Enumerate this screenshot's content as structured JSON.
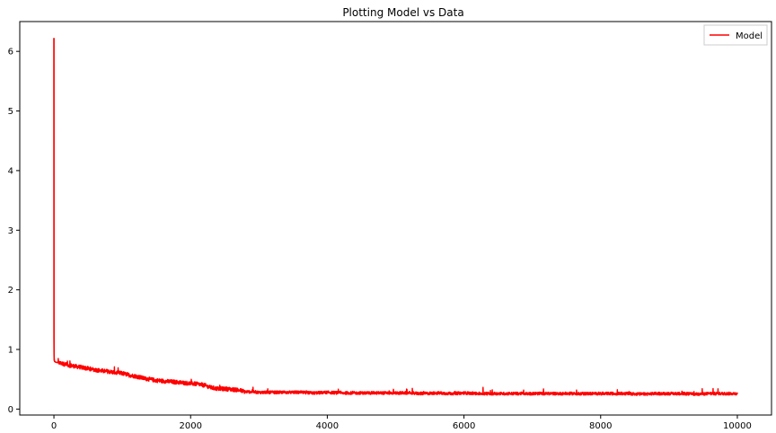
{
  "chart_data": {
    "type": "line",
    "title": "Plotting Model vs Data",
    "xlabel": "",
    "ylabel": "",
    "xlim": [
      -500,
      10500
    ],
    "ylim": [
      -0.1,
      6.5
    ],
    "x_ticks": [
      0,
      2000,
      4000,
      6000,
      8000,
      10000
    ],
    "x_tick_labels": [
      "0",
      "2000",
      "4000",
      "6000",
      "8000",
      "10000"
    ],
    "y_ticks": [
      0,
      1,
      2,
      3,
      4,
      5,
      6
    ],
    "y_tick_labels": [
      "0",
      "1",
      "2",
      "3",
      "4",
      "5",
      "6"
    ],
    "grid": false,
    "legend_position": "top-right",
    "legend": [
      "Model"
    ],
    "series": [
      {
        "name": "Model",
        "color": "#ff0000",
        "x": [
          0,
          1,
          2,
          5,
          10,
          20,
          50,
          100,
          200,
          300,
          400,
          500,
          600,
          700,
          800,
          900,
          1000,
          1100,
          1200,
          1300,
          1400,
          1500,
          1600,
          1700,
          1800,
          1900,
          2000,
          2100,
          2200,
          2300,
          2400,
          2500,
          2600,
          2700,
          2800,
          2900,
          3000,
          3200,
          3400,
          3600,
          3800,
          4000,
          4200,
          4400,
          4600,
          4800,
          5000,
          5200,
          5400,
          5600,
          5800,
          6000,
          6200,
          6400,
          6600,
          6800,
          7000,
          7200,
          7400,
          7600,
          7800,
          8000,
          8200,
          8400,
          8600,
          8800,
          9000,
          9200,
          9400,
          9600,
          9800,
          10000
        ],
        "values": [
          6.22,
          1.2,
          0.9,
          0.82,
          0.8,
          0.79,
          0.78,
          0.77,
          0.74,
          0.72,
          0.7,
          0.68,
          0.66,
          0.64,
          0.63,
          0.61,
          0.6,
          0.57,
          0.55,
          0.52,
          0.5,
          0.48,
          0.47,
          0.46,
          0.45,
          0.44,
          0.43,
          0.42,
          0.4,
          0.36,
          0.34,
          0.34,
          0.33,
          0.32,
          0.29,
          0.29,
          0.28,
          0.28,
          0.28,
          0.28,
          0.27,
          0.28,
          0.27,
          0.27,
          0.27,
          0.27,
          0.27,
          0.27,
          0.26,
          0.27,
          0.26,
          0.27,
          0.26,
          0.26,
          0.26,
          0.26,
          0.26,
          0.26,
          0.26,
          0.26,
          0.26,
          0.26,
          0.26,
          0.26,
          0.25,
          0.26,
          0.26,
          0.26,
          0.25,
          0.26,
          0.26,
          0.26
        ]
      }
    ]
  }
}
